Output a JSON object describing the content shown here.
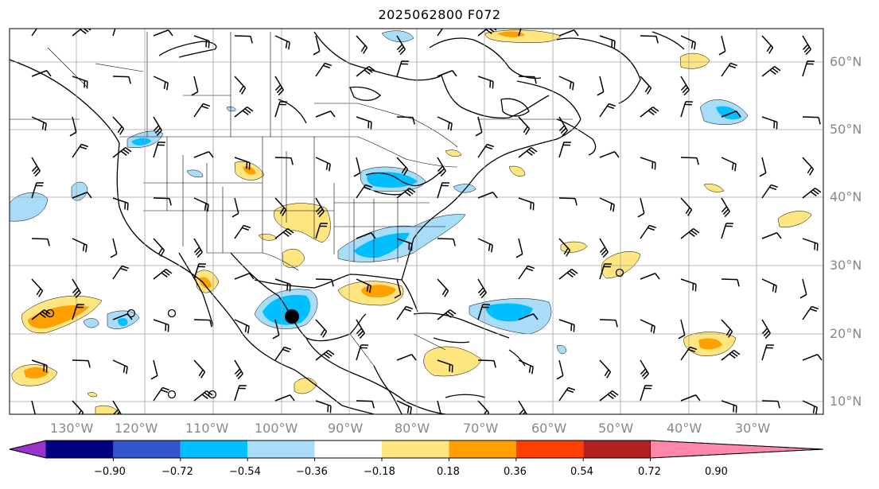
{
  "title": "2025062800 F072",
  "map": {
    "grid_lat_labels": [
      "60°N",
      "50°N",
      "40°N",
      "30°N",
      "20°N",
      "10°N"
    ],
    "grid_lon_labels": [
      "130°W",
      "120°W",
      "110°W",
      "100°W",
      "90°W",
      "80°W",
      "70°W",
      "60°W",
      "50°W",
      "40°W",
      "30°W"
    ],
    "gridline_color": "#a0a0a0",
    "label_color": "#888888",
    "coastline_color": "#000000",
    "marker_color": "#000000"
  },
  "colorbar": {
    "levels": [
      "−0.90",
      "−0.72",
      "−0.54",
      "−0.36",
      "−0.18",
      "0.18",
      "0.36",
      "0.54",
      "0.72",
      "0.90"
    ],
    "colors": [
      "#9933cc",
      "#000080",
      "#3355cc",
      "#00bfff",
      "#a8dcf8",
      "#ffffff",
      "#ffe680",
      "#ffa000",
      "#ff4000",
      "#b22222",
      "#ff88aa"
    ]
  }
}
